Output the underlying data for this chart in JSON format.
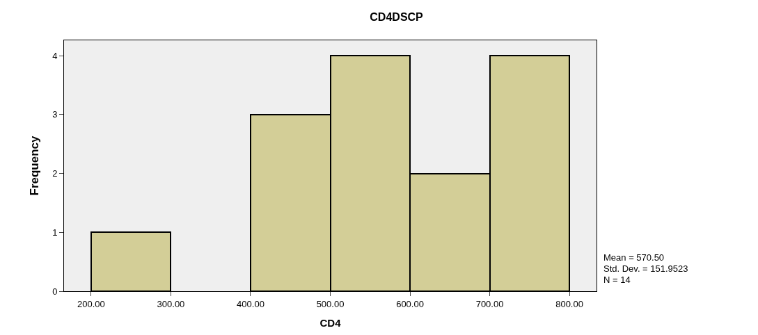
{
  "chart_data": {
    "type": "histogram",
    "title": "CD4DSCP",
    "xlabel": "CD4",
    "ylabel": "Frequency",
    "bins": [
      200,
      300,
      400,
      500,
      600,
      700,
      800
    ],
    "values": [
      1,
      0,
      3,
      4,
      2,
      4
    ],
    "color": "#d3ce97",
    "xlim": [
      166,
      834
    ],
    "ylim": [
      0,
      4.26
    ],
    "xticks": [
      {
        "value": 200,
        "label": "200.00"
      },
      {
        "value": 300,
        "label": "300.00"
      },
      {
        "value": 400,
        "label": "400.00"
      },
      {
        "value": 500,
        "label": "500.00"
      },
      {
        "value": 600,
        "label": "600.00"
      },
      {
        "value": 700,
        "label": "700.00"
      },
      {
        "value": 800,
        "label": "800.00"
      }
    ],
    "yticks": [
      0,
      1,
      2,
      3,
      4
    ],
    "grid": false,
    "legend": false,
    "annotations": [
      "Mean = 570.50",
      "Std. Dev. = 151.9523",
      "N = 14"
    ]
  }
}
